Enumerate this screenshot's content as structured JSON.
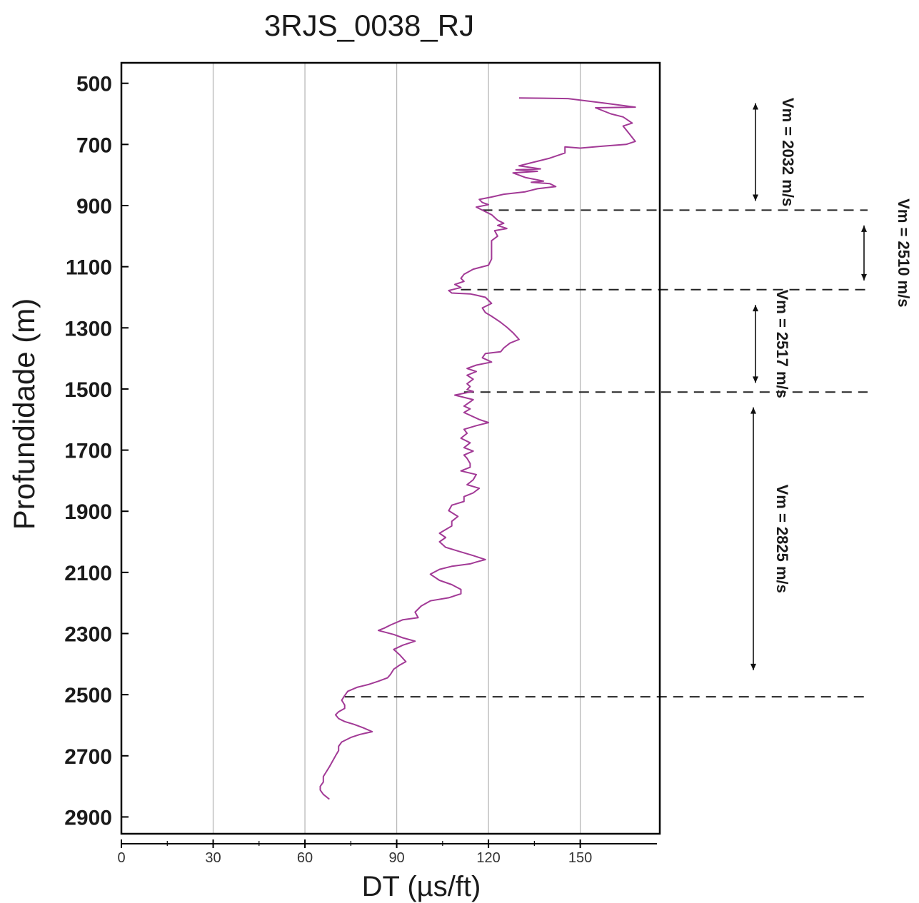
{
  "chart_data": {
    "type": "line",
    "title": "3RJS_0038_RJ",
    "xlabel": "DT (µs/ft)",
    "ylabel": "Profundidade (m)",
    "xlim": [
      0,
      176
    ],
    "ylim": [
      2955,
      433
    ],
    "y_inverted": true,
    "grid": "vertical",
    "x_ticks": [
      0,
      30,
      60,
      90,
      120,
      150
    ],
    "x_tick_labels": [
      "0",
      "30",
      "60",
      "90",
      "120",
      "150"
    ],
    "y_ticks": [
      500,
      700,
      900,
      1100,
      1300,
      1500,
      1700,
      1900,
      2100,
      2300,
      2500,
      2700,
      2900
    ],
    "y_tick_labels": [
      "500",
      "700",
      "900",
      "1100",
      "1300",
      "1500",
      "1700",
      "1900",
      "2100",
      "2300",
      "2500",
      "2700",
      "2900"
    ],
    "series": [
      {
        "color": "#a23a96",
        "points": [
          [
            130,
            548
          ],
          [
            146,
            550
          ],
          [
            158,
            565
          ],
          [
            168,
            578
          ],
          [
            155,
            580
          ],
          [
            160,
            600
          ],
          [
            164,
            610
          ],
          [
            167,
            630
          ],
          [
            164,
            640
          ],
          [
            166,
            665
          ],
          [
            168,
            690
          ],
          [
            165,
            700
          ],
          [
            157,
            706
          ],
          [
            150,
            712
          ],
          [
            145,
            708
          ],
          [
            145,
            728
          ],
          [
            140,
            745
          ],
          [
            134,
            760
          ],
          [
            130,
            770
          ],
          [
            137,
            780
          ],
          [
            129,
            783
          ],
          [
            136,
            788
          ],
          [
            128,
            793
          ],
          [
            132,
            808
          ],
          [
            138,
            820
          ],
          [
            134,
            824
          ],
          [
            140,
            828
          ],
          [
            142,
            838
          ],
          [
            136,
            845
          ],
          [
            132,
            855
          ],
          [
            125,
            863
          ],
          [
            121,
            872
          ],
          [
            117,
            880
          ],
          [
            118,
            890
          ],
          [
            120,
            897
          ],
          [
            116,
            905
          ],
          [
            118,
            915
          ],
          [
            121,
            930
          ],
          [
            123,
            948
          ],
          [
            125,
            958
          ],
          [
            123,
            965
          ],
          [
            126,
            975
          ],
          [
            122,
            982
          ],
          [
            123,
            1000
          ],
          [
            121,
            1015
          ],
          [
            121,
            1035
          ],
          [
            121,
            1055
          ],
          [
            121,
            1075
          ],
          [
            120,
            1095
          ],
          [
            115,
            1108
          ],
          [
            112,
            1125
          ],
          [
            111,
            1138
          ],
          [
            112,
            1148
          ],
          [
            109,
            1158
          ],
          [
            111,
            1168
          ],
          [
            107,
            1178
          ],
          [
            108,
            1186
          ],
          [
            114,
            1189
          ],
          [
            116,
            1193
          ],
          [
            119,
            1200
          ],
          [
            121,
            1220
          ],
          [
            118,
            1235
          ],
          [
            119,
            1250
          ],
          [
            121,
            1262
          ],
          [
            124,
            1282
          ],
          [
            126,
            1298
          ],
          [
            128,
            1316
          ],
          [
            130,
            1338
          ],
          [
            127,
            1350
          ],
          [
            125,
            1366
          ],
          [
            124,
            1378
          ],
          [
            119,
            1384
          ],
          [
            118,
            1398
          ],
          [
            121,
            1412
          ],
          [
            116,
            1422
          ],
          [
            113,
            1433
          ],
          [
            116,
            1443
          ],
          [
            113,
            1455
          ],
          [
            115,
            1468
          ],
          [
            113,
            1483
          ],
          [
            114,
            1492
          ],
          [
            113,
            1502
          ],
          [
            115,
            1508
          ],
          [
            109,
            1520
          ],
          [
            115,
            1535
          ],
          [
            112,
            1556
          ],
          [
            114,
            1565
          ],
          [
            112,
            1577
          ],
          [
            117,
            1600
          ],
          [
            120,
            1610
          ],
          [
            116,
            1620
          ],
          [
            112,
            1632
          ],
          [
            113,
            1645
          ],
          [
            111,
            1661
          ],
          [
            114,
            1676
          ],
          [
            112,
            1692
          ],
          [
            115,
            1703
          ],
          [
            112,
            1716
          ],
          [
            113,
            1727
          ],
          [
            114,
            1744
          ],
          [
            114,
            1756
          ],
          [
            111,
            1768
          ],
          [
            116,
            1780
          ],
          [
            115,
            1797
          ],
          [
            113,
            1813
          ],
          [
            117,
            1825
          ],
          [
            115,
            1840
          ],
          [
            112,
            1852
          ],
          [
            112,
            1868
          ],
          [
            108,
            1880
          ],
          [
            107,
            1898
          ],
          [
            110,
            1917
          ],
          [
            108,
            1933
          ],
          [
            108,
            1948
          ],
          [
            106,
            1960
          ],
          [
            104,
            1972
          ],
          [
            106,
            1986
          ],
          [
            104,
            2000
          ],
          [
            106,
            2018
          ],
          [
            110,
            2030
          ],
          [
            115,
            2045
          ],
          [
            119,
            2058
          ],
          [
            116,
            2066
          ],
          [
            114,
            2072
          ],
          [
            108,
            2080
          ],
          [
            104,
            2090
          ],
          [
            101,
            2106
          ],
          [
            104,
            2126
          ],
          [
            108,
            2140
          ],
          [
            111,
            2156
          ],
          [
            111,
            2170
          ],
          [
            107,
            2183
          ],
          [
            101,
            2193
          ],
          [
            98,
            2210
          ],
          [
            96,
            2230
          ],
          [
            97,
            2248
          ],
          [
            92,
            2255
          ],
          [
            88,
            2272
          ],
          [
            86,
            2282
          ],
          [
            84,
            2290
          ],
          [
            89,
            2303
          ],
          [
            92,
            2314
          ],
          [
            96,
            2325
          ],
          [
            92,
            2338
          ],
          [
            89,
            2352
          ],
          [
            91,
            2370
          ],
          [
            93,
            2392
          ],
          [
            91,
            2403
          ],
          [
            89,
            2417
          ],
          [
            88,
            2433
          ],
          [
            87,
            2445
          ],
          [
            84,
            2456
          ],
          [
            81,
            2466
          ],
          [
            77,
            2476
          ],
          [
            74,
            2489
          ],
          [
            73,
            2503
          ],
          [
            72,
            2518
          ],
          [
            73,
            2534
          ],
          [
            73,
            2545
          ],
          [
            71,
            2556
          ],
          [
            70,
            2566
          ],
          [
            71,
            2578
          ],
          [
            73,
            2588
          ],
          [
            76,
            2597
          ],
          [
            79,
            2608
          ],
          [
            82,
            2621
          ],
          [
            78,
            2630
          ],
          [
            75,
            2640
          ],
          [
            72,
            2655
          ],
          [
            71,
            2669
          ],
          [
            71,
            2683
          ],
          [
            70,
            2700
          ],
          [
            69,
            2718
          ],
          [
            68,
            2736
          ],
          [
            67,
            2752
          ],
          [
            66,
            2768
          ],
          [
            66,
            2786
          ],
          [
            65,
            2800
          ],
          [
            65,
            2812
          ],
          [
            66,
            2826
          ],
          [
            68,
            2842
          ]
        ]
      }
    ],
    "reference_lines": [
      {
        "depth": 915,
        "x_start": 118
      },
      {
        "depth": 1175,
        "x_start": 111
      },
      {
        "depth": 1510,
        "x_start": 112
      },
      {
        "depth": 2507,
        "x_start": 73
      }
    ],
    "interval_annotations": [
      {
        "label": "Vm = 2032 m/s",
        "from": 565,
        "to": 885
      },
      {
        "label": "Vm = 2510 m/s",
        "from": 965,
        "to": 1145
      },
      {
        "label": "Vm = 2517 m/s",
        "from": 1225,
        "to": 1480
      },
      {
        "label": "Vm = 2825 m/s",
        "from": 1560,
        "to": 2420
      }
    ]
  }
}
